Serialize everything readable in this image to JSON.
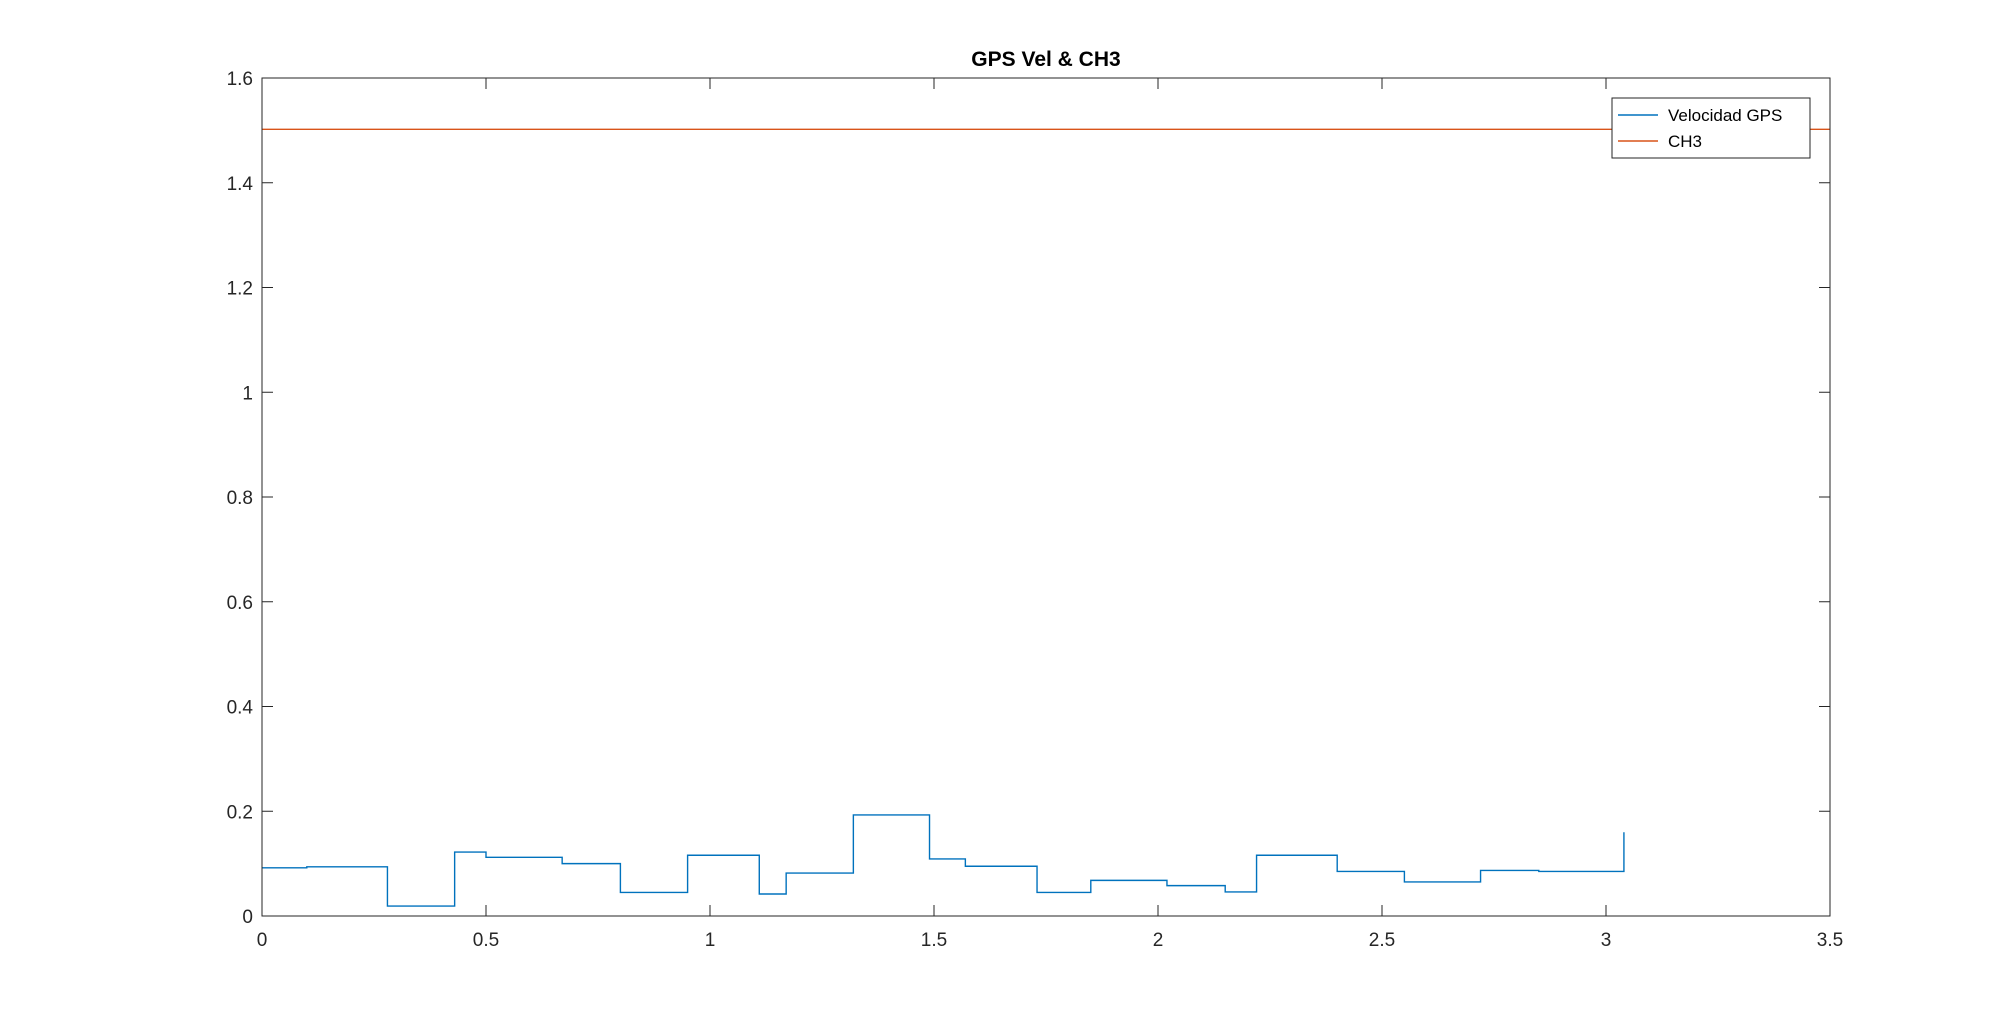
{
  "chart_data": {
    "type": "line",
    "title": "GPS Vel & CH3",
    "xlabel": "",
    "ylabel": "",
    "xlim": [
      0,
      3.5
    ],
    "ylim": [
      0,
      1.6
    ],
    "x_ticks": [
      0,
      0.5,
      1,
      1.5,
      2,
      2.5,
      3,
      3.5
    ],
    "x_tick_labels": [
      "0",
      "0.5",
      "1",
      "1.5",
      "2",
      "2.5",
      "3",
      "3.5"
    ],
    "y_ticks": [
      0,
      0.2,
      0.4,
      0.6,
      0.8,
      1,
      1.2,
      1.4,
      1.6
    ],
    "y_tick_labels": [
      "0",
      "0.2",
      "0.4",
      "0.6",
      "0.8",
      "1",
      "1.2",
      "1.4",
      "1.6"
    ],
    "grid": false,
    "box": true,
    "legend_position": "top-right",
    "series": [
      {
        "name": "Velocidad GPS",
        "color": "#0072BD",
        "step": true,
        "x": [
          0,
          0.1,
          0.28,
          0.43,
          0.5,
          0.67,
          0.8,
          0.95,
          1.11,
          1.17,
          1.32,
          1.49,
          1.57,
          1.73,
          1.85,
          2.02,
          2.15,
          2.22,
          2.4,
          2.55,
          2.72,
          2.85,
          3.04
        ],
        "values": [
          0.092,
          0.094,
          0.019,
          0.122,
          0.112,
          0.1,
          0.045,
          0.116,
          0.042,
          0.082,
          0.193,
          0.109,
          0.095,
          0.045,
          0.068,
          0.058,
          0.046,
          0.116,
          0.085,
          0.065,
          0.087,
          0.085,
          0.16
        ]
      },
      {
        "name": "CH3",
        "color": "#D95319",
        "step": false,
        "x": [
          0,
          3.5
        ],
        "values": [
          1.502,
          1.502
        ]
      }
    ]
  }
}
